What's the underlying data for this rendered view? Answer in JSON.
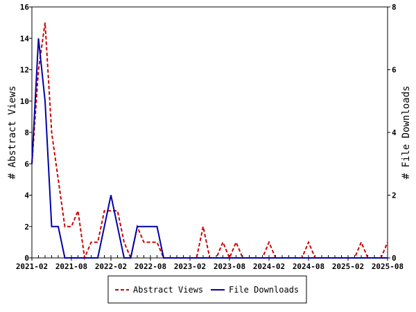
{
  "chart_data": {
    "type": "line",
    "ylabel_left": "# Abstract Views",
    "ylabel_right": "# File Downloads",
    "ylim_left": [
      0,
      16
    ],
    "ylim_right": [
      0,
      8
    ],
    "yticks_left": [
      "0",
      "2",
      "4",
      "6",
      "8",
      "10",
      "12",
      "14",
      "16"
    ],
    "yticks_right": [
      "0",
      "2",
      "4",
      "6",
      "8"
    ],
    "xlim": [
      "2021-02",
      "2025-08"
    ],
    "xticks": [
      "2021-02",
      "2021-08",
      "2022-02",
      "2022-08",
      "2023-02",
      "2023-08",
      "2024-02",
      "2024-08",
      "2025-02",
      "2025-08"
    ],
    "legend_position": "bottom-center",
    "grid": false,
    "series": [
      {
        "name": "Abstract Views",
        "axis": "left",
        "color": "#cc0000",
        "style": "dashed",
        "x": [
          "2021-02",
          "2021-03",
          "2021-04",
          "2021-05",
          "2021-06",
          "2021-07",
          "2021-08",
          "2021-09",
          "2021-10",
          "2021-11",
          "2021-12",
          "2022-01",
          "2022-02",
          "2022-03",
          "2022-04",
          "2022-05",
          "2022-06",
          "2022-07",
          "2022-08",
          "2022-09",
          "2022-10",
          "2022-11",
          "2022-12",
          "2023-01",
          "2023-02",
          "2023-03",
          "2023-04",
          "2023-05",
          "2023-06",
          "2023-07",
          "2023-08",
          "2023-09",
          "2023-10",
          "2023-11",
          "2023-12",
          "2024-01",
          "2024-02",
          "2024-03",
          "2024-04",
          "2024-05",
          "2024-06",
          "2024-07",
          "2024-08",
          "2024-09",
          "2024-10",
          "2024-11",
          "2024-12",
          "2025-01",
          "2025-02",
          "2025-03",
          "2025-04",
          "2025-05",
          "2025-06",
          "2025-07",
          "2025-08"
        ],
        "values": [
          6,
          12,
          15,
          8,
          5,
          2,
          2,
          3,
          0,
          1,
          1,
          3,
          3,
          3,
          1,
          0,
          2,
          1,
          1,
          1,
          0,
          0,
          0,
          0,
          0,
          0,
          2,
          0,
          0,
          1,
          0,
          1,
          0,
          0,
          0,
          0,
          1,
          0,
          0,
          0,
          0,
          0,
          1,
          0,
          0,
          0,
          0,
          0,
          0,
          0,
          1,
          0,
          0,
          0,
          1
        ]
      },
      {
        "name": "File Downloads",
        "axis": "right",
        "color": "#0000aa",
        "style": "solid",
        "x": [
          "2021-02",
          "2021-03",
          "2021-04",
          "2021-05",
          "2021-06",
          "2021-07",
          "2021-08",
          "2021-09",
          "2021-10",
          "2021-11",
          "2021-12",
          "2022-01",
          "2022-02",
          "2022-03",
          "2022-04",
          "2022-05",
          "2022-06",
          "2022-07",
          "2022-08",
          "2022-09",
          "2022-10",
          "2022-11",
          "2022-12",
          "2023-01",
          "2023-02",
          "2023-03",
          "2023-04",
          "2023-05",
          "2023-06",
          "2023-07",
          "2023-08",
          "2023-09",
          "2023-10",
          "2023-11",
          "2023-12",
          "2024-01",
          "2024-02",
          "2024-03",
          "2024-04",
          "2024-05",
          "2024-06",
          "2024-07",
          "2024-08",
          "2024-09",
          "2024-10",
          "2024-11",
          "2024-12",
          "2025-01",
          "2025-02",
          "2025-03",
          "2025-04",
          "2025-05",
          "2025-06",
          "2025-07",
          "2025-08"
        ],
        "values": [
          3,
          7,
          5,
          1,
          1,
          0,
          0,
          0,
          0,
          0,
          0,
          1,
          2,
          1,
          0,
          0,
          1,
          1,
          1,
          1,
          0,
          0,
          0,
          0,
          0,
          0,
          0,
          0,
          0,
          0,
          0,
          0,
          0,
          0,
          0,
          0,
          0,
          0,
          0,
          0,
          0,
          0,
          0,
          0,
          0,
          0,
          0,
          0,
          0,
          0,
          0,
          0,
          0,
          0,
          0
        ]
      }
    ]
  }
}
